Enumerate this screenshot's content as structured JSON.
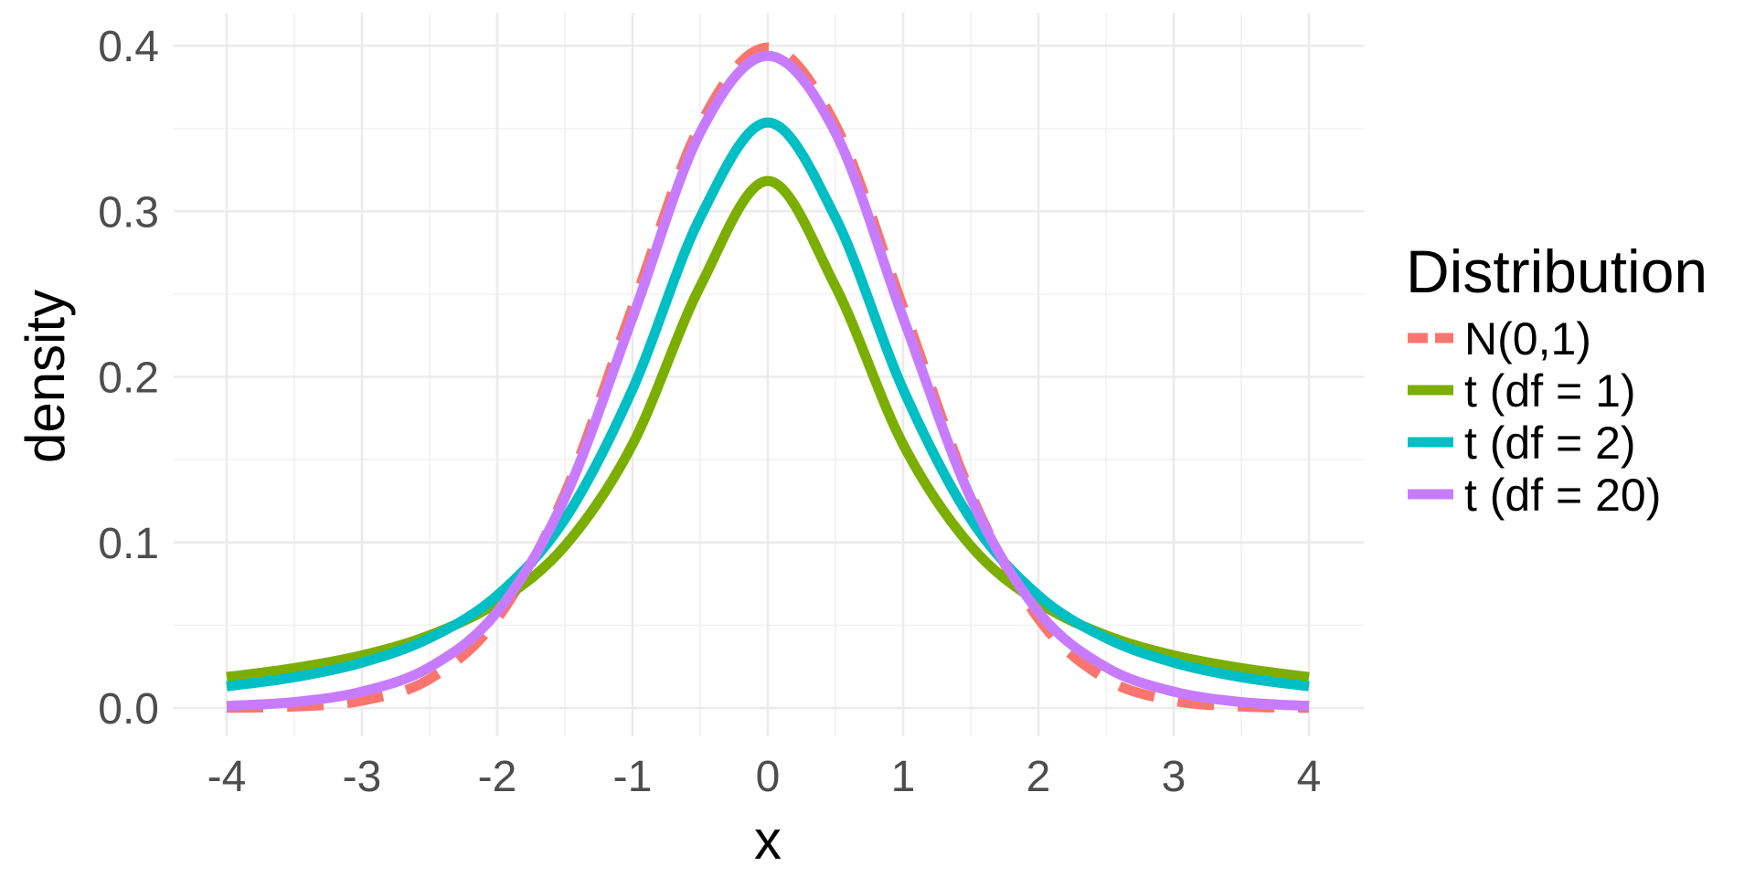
{
  "chart_data": {
    "type": "line",
    "xlabel": "x",
    "ylabel": "density",
    "xlim": [
      -4,
      4
    ],
    "ylim": [
      0,
      0.4
    ],
    "grid": true,
    "legend_placement": "right",
    "x_ticks": [
      "-4",
      "-3",
      "-2",
      "-1",
      "0",
      "1",
      "2",
      "3",
      "4"
    ],
    "y_ticks": [
      "0.0",
      "0.1",
      "0.2",
      "0.3",
      "0.4"
    ],
    "legend": {
      "title": "Distribution",
      "entries": [
        "N(0,1)",
        "t (df = 1)",
        "t (df = 2)",
        "t (df = 20)"
      ]
    },
    "series": [
      {
        "name": "N(0,1)",
        "color": "#F8766D",
        "dashed": true,
        "x": [
          -4,
          -3.5,
          -3,
          -2.5,
          -2,
          -1.5,
          -1,
          -0.5,
          0,
          0.5,
          1,
          1.5,
          2,
          2.5,
          3,
          3.5,
          4
        ],
        "values": [
          0.0001,
          0.0009,
          0.0044,
          0.0175,
          0.054,
          0.1295,
          0.242,
          0.3521,
          0.3989,
          0.3521,
          0.242,
          0.1295,
          0.054,
          0.0175,
          0.0044,
          0.0009,
          0.0001
        ]
      },
      {
        "name": "t (df = 1)",
        "color": "#7CAE00",
        "dashed": false,
        "x": [
          -4,
          -3.5,
          -3,
          -2.5,
          -2,
          -1.5,
          -1,
          -0.5,
          0,
          0.5,
          1,
          1.5,
          2,
          2.5,
          3,
          3.5,
          4
        ],
        "values": [
          0.0187,
          0.0241,
          0.0318,
          0.0439,
          0.0637,
          0.0979,
          0.1592,
          0.2546,
          0.3183,
          0.2546,
          0.1592,
          0.0979,
          0.0637,
          0.0439,
          0.0318,
          0.0241,
          0.0187
        ]
      },
      {
        "name": "t (df = 2)",
        "color": "#00BFC4",
        "dashed": false,
        "x": [
          -4,
          -3.5,
          -3,
          -2.5,
          -2,
          -1.5,
          -1,
          -0.5,
          0,
          0.5,
          1,
          1.5,
          2,
          2.5,
          3,
          3.5,
          4
        ],
        "values": [
          0.0131,
          0.0186,
          0.0274,
          0.0422,
          0.068,
          0.1141,
          0.1925,
          0.2962,
          0.3536,
          0.2962,
          0.1925,
          0.1141,
          0.068,
          0.0422,
          0.0274,
          0.0186,
          0.0131
        ]
      },
      {
        "name": "t (df = 20)",
        "color": "#C77CFF",
        "dashed": false,
        "x": [
          -4,
          -3.5,
          -3,
          -2.5,
          -2,
          -1.5,
          -1,
          -0.5,
          0,
          0.5,
          1,
          1.5,
          2,
          2.5,
          3,
          3.5,
          4
        ],
        "values": [
          0.0012,
          0.0036,
          0.0099,
          0.0246,
          0.0581,
          0.1269,
          0.2357,
          0.3474,
          0.3939,
          0.3474,
          0.2357,
          0.1269,
          0.0581,
          0.0246,
          0.0099,
          0.0036,
          0.0012
        ]
      }
    ]
  }
}
